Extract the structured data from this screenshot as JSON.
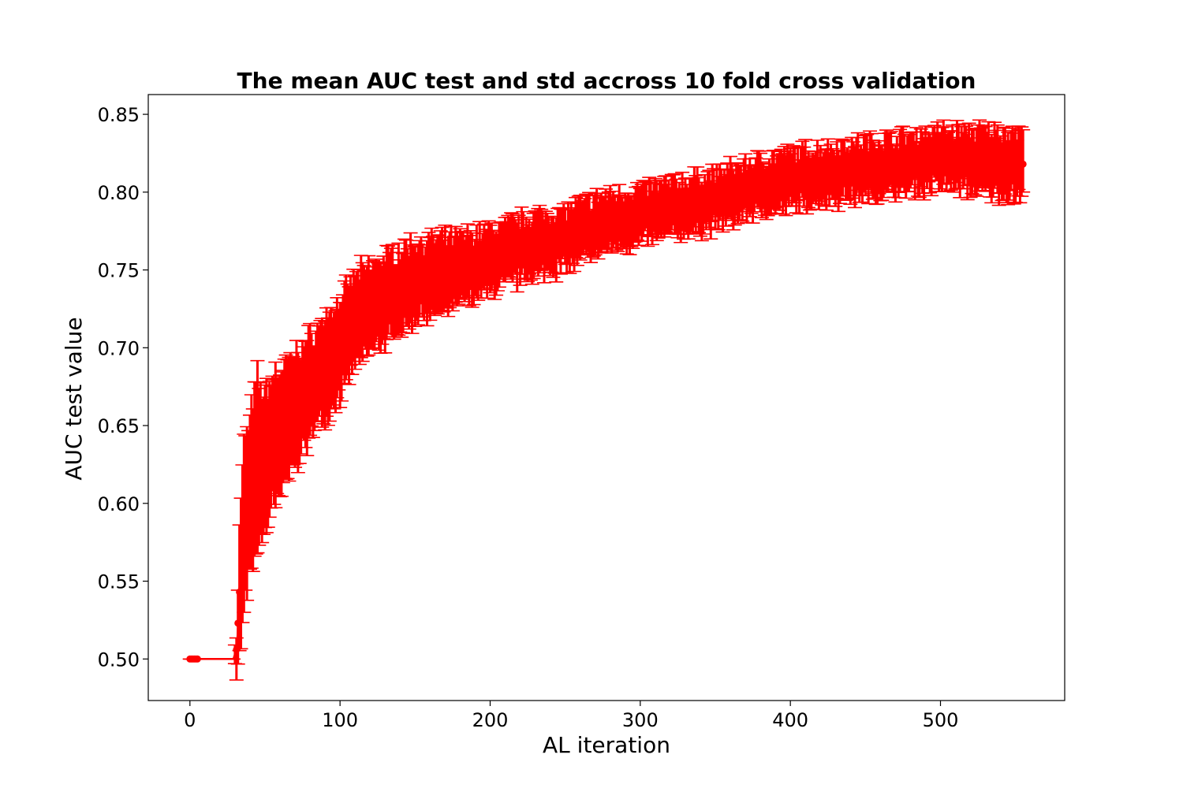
{
  "chart_data": {
    "type": "line",
    "title": "The mean AUC test and std accross 10 fold cross validation",
    "xlabel": "AL iteration",
    "ylabel": "AUC test value",
    "xlim": [
      -27.75,
      582.75
    ],
    "ylim": [
      0.4733,
      0.8627
    ],
    "xticks": [
      0,
      100,
      200,
      300,
      400,
      500
    ],
    "yticks": [
      0.5,
      0.55,
      0.6,
      0.65,
      0.7,
      0.75,
      0.8,
      0.85
    ],
    "xtick_labels": [
      "0",
      "100",
      "200",
      "300",
      "400",
      "500"
    ],
    "ytick_labels": [
      "0.50",
      "0.55",
      "0.60",
      "0.65",
      "0.70",
      "0.75",
      "0.80",
      "0.85"
    ],
    "grid": false,
    "color": "#ff0000",
    "series": [
      {
        "error_bars": true,
        "x_range": [
          0,
          555
        ],
        "mean_points": [
          {
            "x": 0,
            "y": 0.5
          },
          {
            "x": 29,
            "y": 0.5
          },
          {
            "x": 31,
            "y": 0.506
          },
          {
            "x": 32,
            "y": 0.523
          },
          {
            "x": 33,
            "y": 0.543
          },
          {
            "x": 36,
            "y": 0.585
          },
          {
            "x": 40,
            "y": 0.605
          },
          {
            "x": 45,
            "y": 0.625
          },
          {
            "x": 50,
            "y": 0.625
          },
          {
            "x": 55,
            "y": 0.64
          },
          {
            "x": 60,
            "y": 0.645
          },
          {
            "x": 70,
            "y": 0.66
          },
          {
            "x": 80,
            "y": 0.675
          },
          {
            "x": 90,
            "y": 0.688
          },
          {
            "x": 100,
            "y": 0.7
          },
          {
            "x": 110,
            "y": 0.718
          },
          {
            "x": 125,
            "y": 0.728
          },
          {
            "x": 150,
            "y": 0.743
          },
          {
            "x": 175,
            "y": 0.748
          },
          {
            "x": 200,
            "y": 0.756
          },
          {
            "x": 225,
            "y": 0.765
          },
          {
            "x": 250,
            "y": 0.77
          },
          {
            "x": 275,
            "y": 0.78
          },
          {
            "x": 300,
            "y": 0.785
          },
          {
            "x": 325,
            "y": 0.79
          },
          {
            "x": 350,
            "y": 0.795
          },
          {
            "x": 375,
            "y": 0.803
          },
          {
            "x": 400,
            "y": 0.808
          },
          {
            "x": 425,
            "y": 0.812
          },
          {
            "x": 450,
            "y": 0.815
          },
          {
            "x": 475,
            "y": 0.818
          },
          {
            "x": 500,
            "y": 0.822
          },
          {
            "x": 525,
            "y": 0.82
          },
          {
            "x": 555,
            "y": 0.818
          }
        ],
        "std_points": [
          {
            "x": 0,
            "s": 0.0
          },
          {
            "x": 29,
            "s": 0.0
          },
          {
            "x": 31,
            "s": 0.012
          },
          {
            "x": 33,
            "s": 0.04
          },
          {
            "x": 36,
            "s": 0.055
          },
          {
            "x": 40,
            "s": 0.05
          },
          {
            "x": 45,
            "s": 0.055
          },
          {
            "x": 50,
            "s": 0.045
          },
          {
            "x": 60,
            "s": 0.04
          },
          {
            "x": 80,
            "s": 0.032
          },
          {
            "x": 100,
            "s": 0.03
          },
          {
            "x": 150,
            "s": 0.025
          },
          {
            "x": 200,
            "s": 0.02
          },
          {
            "x": 300,
            "s": 0.017
          },
          {
            "x": 400,
            "s": 0.017
          },
          {
            "x": 500,
            "s": 0.018
          },
          {
            "x": 555,
            "s": 0.021
          }
        ]
      }
    ]
  }
}
